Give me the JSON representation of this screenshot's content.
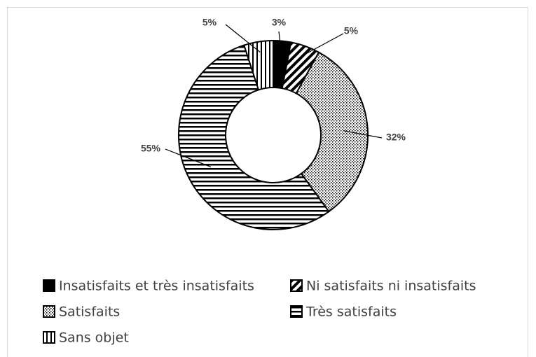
{
  "chart_data": {
    "type": "donut",
    "categories": [
      "Insatisfaits et très insatisfaits",
      "Ni satisfaits ni insatisfaits",
      "Satisfaits",
      "Très satisfaits",
      "Sans objet"
    ],
    "values": [
      3,
      5,
      32,
      55,
      5
    ],
    "value_labels": [
      "3%",
      "5%",
      "32%",
      "55%",
      "5%"
    ],
    "color": "#000000",
    "patterns": [
      "solid",
      "diagonal",
      "checker",
      "horizontal",
      "vertical"
    ],
    "legend": "bottom"
  }
}
